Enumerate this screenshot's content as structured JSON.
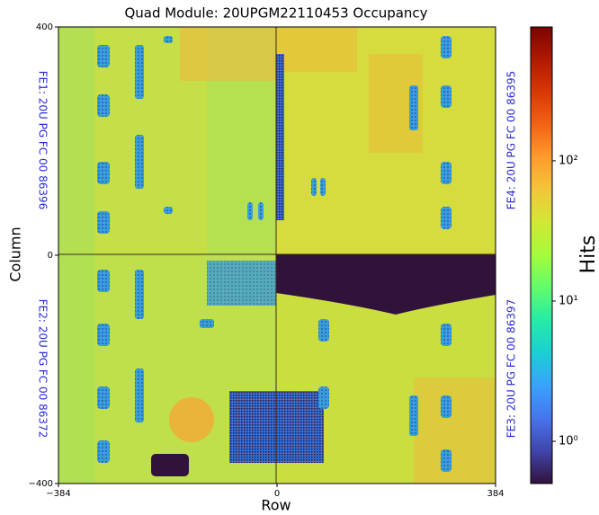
{
  "chart_data": {
    "type": "heatmap",
    "title": "Quad Module: 20UPGM22110453 Occupancy",
    "xlabel": "Row",
    "ylabel": "Column",
    "xlim": [
      -384,
      384
    ],
    "xticks": [
      {
        "value": -384,
        "label": "−384"
      },
      0,
      384
    ],
    "ylim": [
      -400,
      400
    ],
    "yticks": [
      {
        "value": -400,
        "label": "−400"
      },
      0,
      400
    ],
    "annotations": [
      "FE1: 20U PG FC 00 86396",
      "FE2: 20U PG FC 00 86372",
      "FE4: 20U PG FC 00 86395",
      "FE3: 20U PG FC 00 86397"
    ],
    "colorbar": {
      "label": "Hits",
      "scale": "log",
      "lim": [
        0.5,
        900
      ],
      "ticks": [
        {
          "value": 1,
          "label": "10⁰"
        },
        {
          "value": 10,
          "label": "10¹"
        },
        {
          "value": 100,
          "label": "10²"
        }
      ],
      "colors": [
        "#30123b",
        "#4145ab",
        "#4675ed",
        "#39a2fc",
        "#1bcfd4",
        "#24eca6",
        "#61fc6c",
        "#a4fc3b",
        "#d1e834",
        "#f3c63a",
        "#fe9b2d",
        "#f36315",
        "#d93806",
        "#b11901",
        "#7a0402"
      ]
    }
  }
}
